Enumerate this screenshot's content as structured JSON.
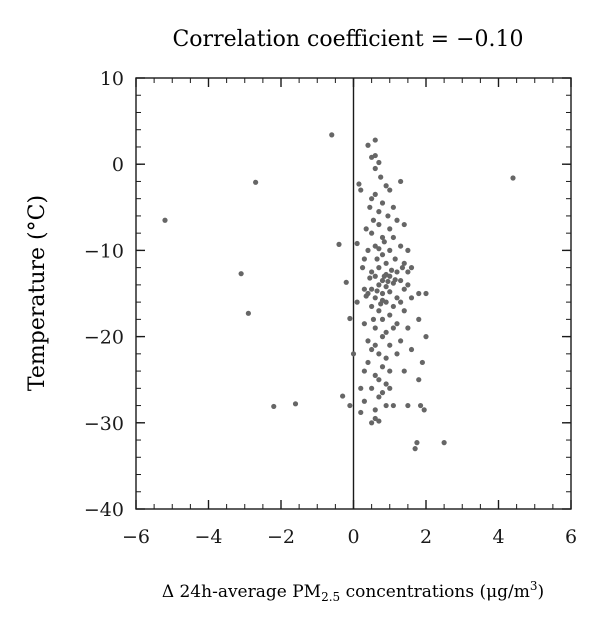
{
  "chart_data": {
    "type": "scatter",
    "title": "Correlation coefficient = −0.10",
    "xlabel": "Δ 24h-average PM",
    "xlabel_sub": "2.5",
    "xlabel_tail": " concentrations (μg/m",
    "xlabel_sup": "3",
    "xlabel_close": ")",
    "ylabel": "Temperature (°C)",
    "xlim": [
      -6,
      6
    ],
    "ylim": [
      -40,
      10
    ],
    "xticks": [
      -6,
      -4,
      -2,
      0,
      2,
      4,
      6
    ],
    "xtick_labels": [
      "−6",
      "−4",
      "−2",
      "0",
      "2",
      "4",
      "6"
    ],
    "yticks": [
      10,
      0,
      -10,
      -20,
      -30,
      -40
    ],
    "ytick_labels": [
      "10",
      "0",
      "−10",
      "−20",
      "−30",
      "−40"
    ],
    "zero_line_x": 0,
    "point_color": "#666666",
    "axis_color": "#1a1a1a",
    "grid": false,
    "points": [
      [
        -5.2,
        -6.5
      ],
      [
        -2.7,
        -2.1
      ],
      [
        -3.1,
        -12.7
      ],
      [
        -2.9,
        -17.3
      ],
      [
        -2.2,
        -28.1
      ],
      [
        -1.6,
        -27.8
      ],
      [
        -0.6,
        3.4
      ],
      [
        -0.4,
        -9.3
      ],
      [
        -0.3,
        -26.9
      ],
      [
        -0.2,
        -13.7
      ],
      [
        -0.1,
        -28.0
      ],
      [
        -0.1,
        -17.9
      ],
      [
        0.0,
        -22.0
      ],
      [
        0.1,
        -9.2
      ],
      [
        0.1,
        -16.0
      ],
      [
        0.15,
        -2.3
      ],
      [
        0.2,
        -3.0
      ],
      [
        0.2,
        -26.0
      ],
      [
        0.2,
        -28.8
      ],
      [
        0.3,
        -14.5
      ],
      [
        0.3,
        -18.5
      ],
      [
        0.3,
        -24.0
      ],
      [
        0.3,
        -27.5
      ],
      [
        0.35,
        -7.5
      ],
      [
        0.4,
        2.2
      ],
      [
        0.4,
        -10.0
      ],
      [
        0.4,
        -15.0
      ],
      [
        0.4,
        -20.5
      ],
      [
        0.4,
        -23.0
      ],
      [
        0.45,
        -5.0
      ],
      [
        0.5,
        0.8
      ],
      [
        0.5,
        -4.0
      ],
      [
        0.5,
        -8.0
      ],
      [
        0.5,
        -12.5
      ],
      [
        0.5,
        -14.5
      ],
      [
        0.5,
        -16.5
      ],
      [
        0.5,
        -21.5
      ],
      [
        0.5,
        -26.0
      ],
      [
        0.55,
        -6.5
      ],
      [
        0.6,
        2.8
      ],
      [
        0.6,
        1.0
      ],
      [
        0.6,
        -0.5
      ],
      [
        0.6,
        -3.5
      ],
      [
        0.6,
        -9.5
      ],
      [
        0.6,
        -13.0
      ],
      [
        0.6,
        -15.5
      ],
      [
        0.6,
        -19.0
      ],
      [
        0.6,
        -24.5
      ],
      [
        0.6,
        -28.5
      ],
      [
        0.6,
        -29.5
      ],
      [
        0.65,
        -11.0
      ],
      [
        0.7,
        0.2
      ],
      [
        0.7,
        -5.5
      ],
      [
        0.7,
        -7.0
      ],
      [
        0.7,
        -12.0
      ],
      [
        0.7,
        -14.0
      ],
      [
        0.7,
        -17.0
      ],
      [
        0.7,
        -22.0
      ],
      [
        0.7,
        -25.0
      ],
      [
        0.7,
        -27.0
      ],
      [
        0.7,
        -29.8
      ],
      [
        0.75,
        -1.5
      ],
      [
        0.8,
        -4.5
      ],
      [
        0.8,
        -8.5
      ],
      [
        0.8,
        -10.5
      ],
      [
        0.8,
        -13.5
      ],
      [
        0.8,
        -15.0
      ],
      [
        0.8,
        -18.0
      ],
      [
        0.8,
        -20.0
      ],
      [
        0.8,
        -23.5
      ],
      [
        0.8,
        -26.5
      ],
      [
        0.85,
        -9.0
      ],
      [
        0.9,
        -2.5
      ],
      [
        0.9,
        -11.5
      ],
      [
        0.9,
        -12.8
      ],
      [
        0.9,
        -14.2
      ],
      [
        0.9,
        -16.0
      ],
      [
        0.9,
        -19.5
      ],
      [
        0.9,
        -22.5
      ],
      [
        0.9,
        -25.5
      ],
      [
        0.9,
        -28.0
      ],
      [
        0.95,
        -6.0
      ],
      [
        1.0,
        -3.0
      ],
      [
        1.0,
        -7.5
      ],
      [
        1.0,
        -10.0
      ],
      [
        1.0,
        -13.0
      ],
      [
        1.0,
        -14.8
      ],
      [
        1.0,
        -17.5
      ],
      [
        1.0,
        -21.0
      ],
      [
        1.0,
        -24.0
      ],
      [
        1.05,
        -12.3
      ],
      [
        1.1,
        -5.0
      ],
      [
        1.1,
        -8.5
      ],
      [
        1.1,
        -13.8
      ],
      [
        1.1,
        -16.5
      ],
      [
        1.1,
        -19.0
      ],
      [
        1.1,
        -28.0
      ],
      [
        1.15,
        -11.0
      ],
      [
        1.2,
        -6.5
      ],
      [
        1.2,
        -12.5
      ],
      [
        1.2,
        -15.5
      ],
      [
        1.2,
        -18.5
      ],
      [
        1.2,
        -22.0
      ],
      [
        1.3,
        -2.0
      ],
      [
        1.3,
        -9.5
      ],
      [
        1.3,
        -13.5
      ],
      [
        1.3,
        -16.0
      ],
      [
        1.3,
        -20.5
      ],
      [
        1.35,
        -12.0
      ],
      [
        1.4,
        -7.0
      ],
      [
        1.4,
        -11.5
      ],
      [
        1.4,
        -14.5
      ],
      [
        1.4,
        -17.0
      ],
      [
        1.4,
        -24.0
      ],
      [
        1.5,
        -10.0
      ],
      [
        1.5,
        -12.5
      ],
      [
        1.5,
        -14.0
      ],
      [
        1.5,
        -19.0
      ],
      [
        1.5,
        -28.0
      ],
      [
        1.6,
        -12.0
      ],
      [
        1.6,
        -15.5
      ],
      [
        1.6,
        -21.5
      ],
      [
        1.7,
        -33.0
      ],
      [
        1.75,
        -32.3
      ],
      [
        1.8,
        -15.0
      ],
      [
        1.8,
        -18.0
      ],
      [
        1.8,
        -25.0
      ],
      [
        1.85,
        -28.0
      ],
      [
        1.9,
        -23.0
      ],
      [
        1.95,
        -28.5
      ],
      [
        2.0,
        -15.0
      ],
      [
        2.0,
        -20.0
      ],
      [
        2.5,
        -32.3
      ],
      [
        4.4,
        -1.6
      ],
      [
        0.25,
        -12.0
      ],
      [
        0.45,
        -13.2
      ],
      [
        0.55,
        -18.0
      ],
      [
        0.75,
        -16.2
      ],
      [
        0.85,
        -13.0
      ],
      [
        0.95,
        -13.6
      ],
      [
        1.15,
        -13.4
      ],
      [
        0.65,
        -14.7
      ],
      [
        0.35,
        -15.3
      ],
      [
        0.8,
        -15.8
      ],
      [
        0.5,
        -30.0
      ],
      [
        0.3,
        -11.0
      ],
      [
        0.7,
        -9.8
      ],
      [
        1.0,
        -26.0
      ],
      [
        0.6,
        -21.0
      ]
    ]
  }
}
